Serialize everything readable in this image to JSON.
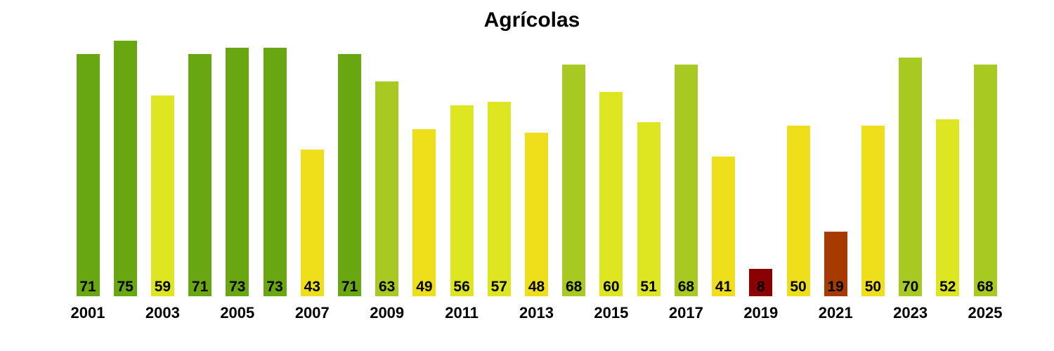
{
  "title": "Agrícolas",
  "chart_data": {
    "type": "bar",
    "title": "Agrícolas",
    "xlabel": "",
    "ylabel": "",
    "ylim": [
      0,
      75
    ],
    "grid": false,
    "legend": false,
    "x": [
      2001,
      2002,
      2003,
      2004,
      2005,
      2006,
      2007,
      2008,
      2009,
      2010,
      2011,
      2012,
      2013,
      2014,
      2015,
      2016,
      2017,
      2018,
      2019,
      2020,
      2021,
      2022,
      2023,
      2024,
      2025
    ],
    "values": [
      71,
      75,
      59,
      71,
      73,
      73,
      43,
      71,
      63,
      49,
      56,
      57,
      48,
      68,
      60,
      51,
      68,
      41,
      8,
      50,
      19,
      50,
      70,
      52,
      68
    ],
    "value_labels": [
      "71",
      "75",
      "59",
      "71",
      "73",
      "73",
      "43",
      "71",
      "63",
      "49",
      "56",
      "57",
      "48",
      "68",
      "60",
      "51",
      "68",
      "41",
      "8",
      "50",
      "19",
      "50",
      "70",
      "52",
      "68"
    ],
    "bar_colors": [
      "#69A712",
      "#69A712",
      "#DDE620",
      "#69A712",
      "#69A712",
      "#69A712",
      "#EFDF1A",
      "#69A712",
      "#A8C822",
      "#EFDF1A",
      "#DDE620",
      "#DDE620",
      "#EFDF1A",
      "#A8C822",
      "#DDE620",
      "#DDE620",
      "#A8C822",
      "#EFDF1A",
      "#8B0000",
      "#EFDF1A",
      "#A63A00",
      "#EFDF1A",
      "#A8C822",
      "#DDE620",
      "#A8C822"
    ],
    "x_tick_labels": [
      "2001",
      "2003",
      "2005",
      "2007",
      "2009",
      "2011",
      "2013",
      "2015",
      "2017",
      "2019",
      "2021",
      "2023",
      "2025"
    ],
    "colors_legend": {
      "high_green": "#69A712",
      "olive": "#A8C822",
      "yellow_green": "#DDE620",
      "yellow": "#EFDF1A",
      "brown": "#A63A00",
      "dark_red": "#8B0000"
    }
  }
}
